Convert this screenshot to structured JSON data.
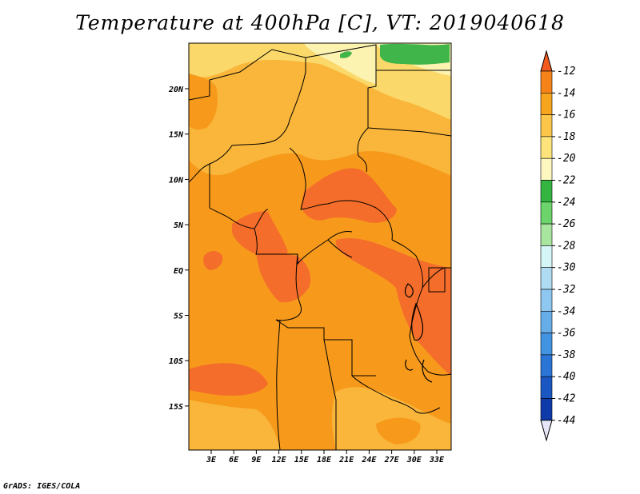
{
  "title": "Temperature at 400hPa [C], VT: 2019040618",
  "footer": "GrADS: IGES/COLA",
  "map": {
    "lat_ticks": [
      "20N",
      "15N",
      "10N",
      "5N",
      "EQ",
      "5S",
      "10S",
      "15S"
    ],
    "lon_ticks": [
      "3E",
      "6E",
      "9E",
      "12E",
      "15E",
      "18E",
      "21E",
      "24E",
      "27E",
      "30E",
      "33E"
    ],
    "colors": {
      "c_12_14": "#f46d2a",
      "c_14_16": "#f79a1c",
      "c_16_18": "#f9b63a",
      "c_18_20": "#fbd86a",
      "c_20_22": "#fcf3b1",
      "c_22_24": "#3fb54a",
      "border": "#000000"
    }
  },
  "colorbar": {
    "labels": [
      "-12",
      "-14",
      "-16",
      "-18",
      "-20",
      "-22",
      "-24",
      "-26",
      "-28",
      "-30",
      "-32",
      "-34",
      "-36",
      "-38",
      "-40",
      "-42",
      "-44"
    ],
    "colors": [
      "#f25a1e",
      "#f58319",
      "#f8a51e",
      "#fbc64a",
      "#fde47a",
      "#fdf7c0",
      "#34b541",
      "#6cd46a",
      "#a8e6a0",
      "#d6f5f6",
      "#b0dcf3",
      "#8ec7ef",
      "#67aee9",
      "#4293e2",
      "#2a75d6",
      "#1a57c3",
      "#0e3aaa",
      "#0a1f7d"
    ],
    "under_color": "#e6e6f8"
  }
}
